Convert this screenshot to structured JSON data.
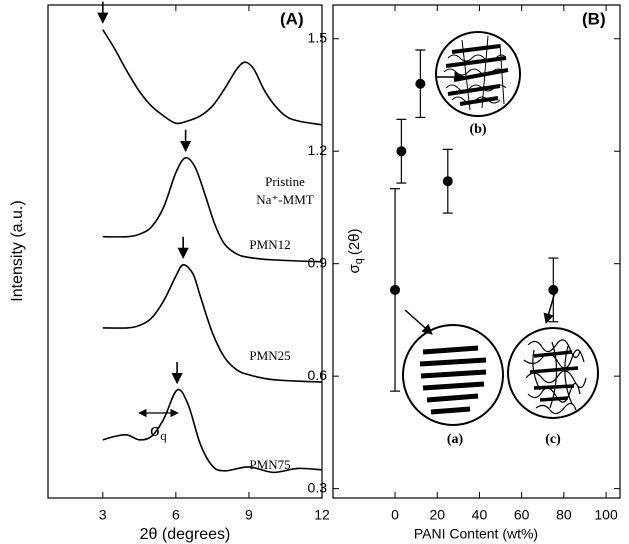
{
  "chart_data": [
    {
      "type": "line",
      "panel_label": "(A)",
      "xlabel": "2θ (degrees)",
      "ylabel": "Intensity (a.u.)",
      "annotation_symbol": "σ",
      "annotation_sub": "q",
      "xlim": [
        0.75,
        12
      ],
      "xticks": [
        3,
        6,
        9,
        12
      ],
      "ylim": [
        0,
        100
      ],
      "series": [
        {
          "name": "Pristine Na⁺-MMT",
          "color": "#000000",
          "x": [
            3,
            3.5,
            4,
            4.5,
            5,
            5.5,
            6,
            6.5,
            7,
            7.5,
            8,
            8.5,
            8.85,
            9.2,
            9.6,
            10,
            10.5,
            11,
            12
          ],
          "values": [
            95,
            91,
            86.5,
            82.5,
            79.5,
            77.5,
            76,
            76.5,
            77.5,
            79.5,
            83,
            87,
            88.4,
            87,
            83,
            80,
            77.5,
            76.5,
            75.7
          ]
        },
        {
          "name": "PMN12",
          "color": "#000000",
          "x": [
            3,
            4,
            4.5,
            5,
            5.5,
            6,
            6.4,
            6.8,
            7.2,
            7.6,
            8,
            8.5,
            9,
            10,
            12
          ],
          "values": [
            53,
            53,
            53.5,
            55,
            59,
            66,
            69,
            67,
            61.5,
            55.5,
            51.5,
            49.5,
            48.8,
            48.3,
            47.9
          ]
        },
        {
          "name": "PMN25",
          "color": "#000000",
          "x": [
            3,
            4,
            4.5,
            5,
            5.5,
            6,
            6.3,
            6.7,
            7,
            7.5,
            8,
            8.5,
            9,
            10,
            12
          ],
          "values": [
            34.5,
            34.5,
            35,
            36.5,
            40,
            45,
            47.3,
            45.5,
            41,
            33.5,
            28.5,
            26,
            25,
            24,
            23.5
          ]
        },
        {
          "name": "PMN75",
          "color": "#000000",
          "x": [
            3,
            3.5,
            4,
            4.5,
            5,
            5.5,
            6.05,
            6.5,
            7,
            7.5,
            8,
            9,
            10,
            11,
            12
          ],
          "values": [
            11.8,
            12.5,
            12.8,
            11.8,
            12.5,
            16,
            21.9,
            19,
            11,
            6.5,
            5.5,
            6.3,
            5.2,
            6,
            5.7
          ]
        }
      ]
    },
    {
      "type": "scatter",
      "panel_label": "(B)",
      "xlabel": "PANI Content (wt%)",
      "ylabel_symbol": "σ",
      "ylabel_sub": "q",
      "ylabel_unit": "(2θ)",
      "xlim": [
        -29.4,
        106.6
      ],
      "xticks": [
        0,
        20,
        40,
        60,
        80,
        100
      ],
      "ylim": [
        0.275,
        1.59
      ],
      "yticks": [
        0.3,
        0.6,
        0.9,
        1.2,
        1.5
      ],
      "x": [
        0,
        3,
        12,
        25,
        75
      ],
      "values": [
        0.83,
        1.2,
        1.38,
        1.12,
        0.83
      ],
      "errors": [
        0.27,
        0.085,
        0.09,
        0.085,
        0.085
      ],
      "color": "#000000",
      "insets": [
        "(a)",
        "(b)",
        "(c)"
      ]
    }
  ]
}
